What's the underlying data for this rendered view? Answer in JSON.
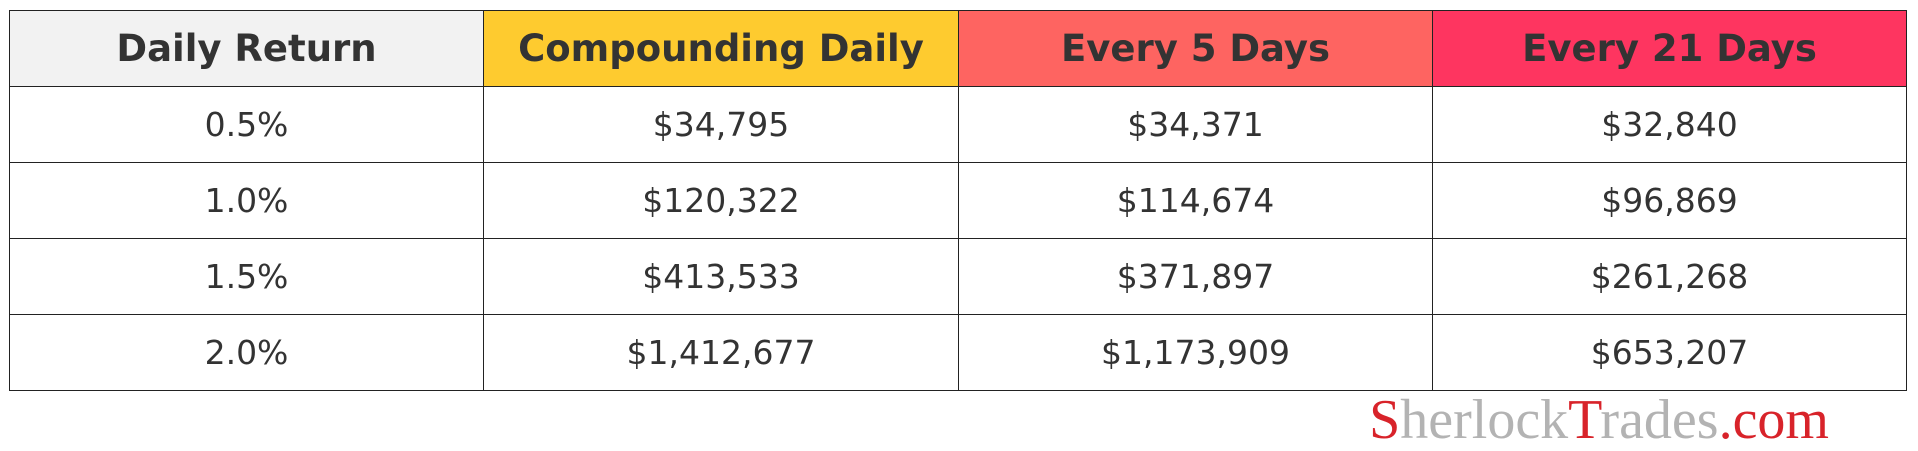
{
  "table": {
    "headers": [
      {
        "label": "Daily Return",
        "color": "#f2f2f2"
      },
      {
        "label": "Compounding Daily",
        "color": "#fecb2f"
      },
      {
        "label": "Every 5 Days",
        "color": "#fe6461"
      },
      {
        "label": "Every 21 Days",
        "color": "#fe3560"
      }
    ],
    "rows": [
      [
        "0.5%",
        "$34,795",
        "$34,371",
        "$32,840"
      ],
      [
        "1.0%",
        "$120,322",
        "$114,674",
        "$96,869"
      ],
      [
        "1.5%",
        "$413,533",
        "$371,897",
        "$261,268"
      ],
      [
        "2.0%",
        "$1,412,677",
        "$1,173,909",
        "$653,207"
      ]
    ]
  },
  "logo": {
    "parts": [
      {
        "text": "S",
        "color": "#d8232a"
      },
      {
        "text": "herlock",
        "color": "#b3b3b3"
      },
      {
        "text": "T",
        "color": "#d8232a"
      },
      {
        "text": "rades",
        "color": "#b3b3b3"
      },
      {
        "text": ".com",
        "color": "#d8232a"
      }
    ]
  }
}
